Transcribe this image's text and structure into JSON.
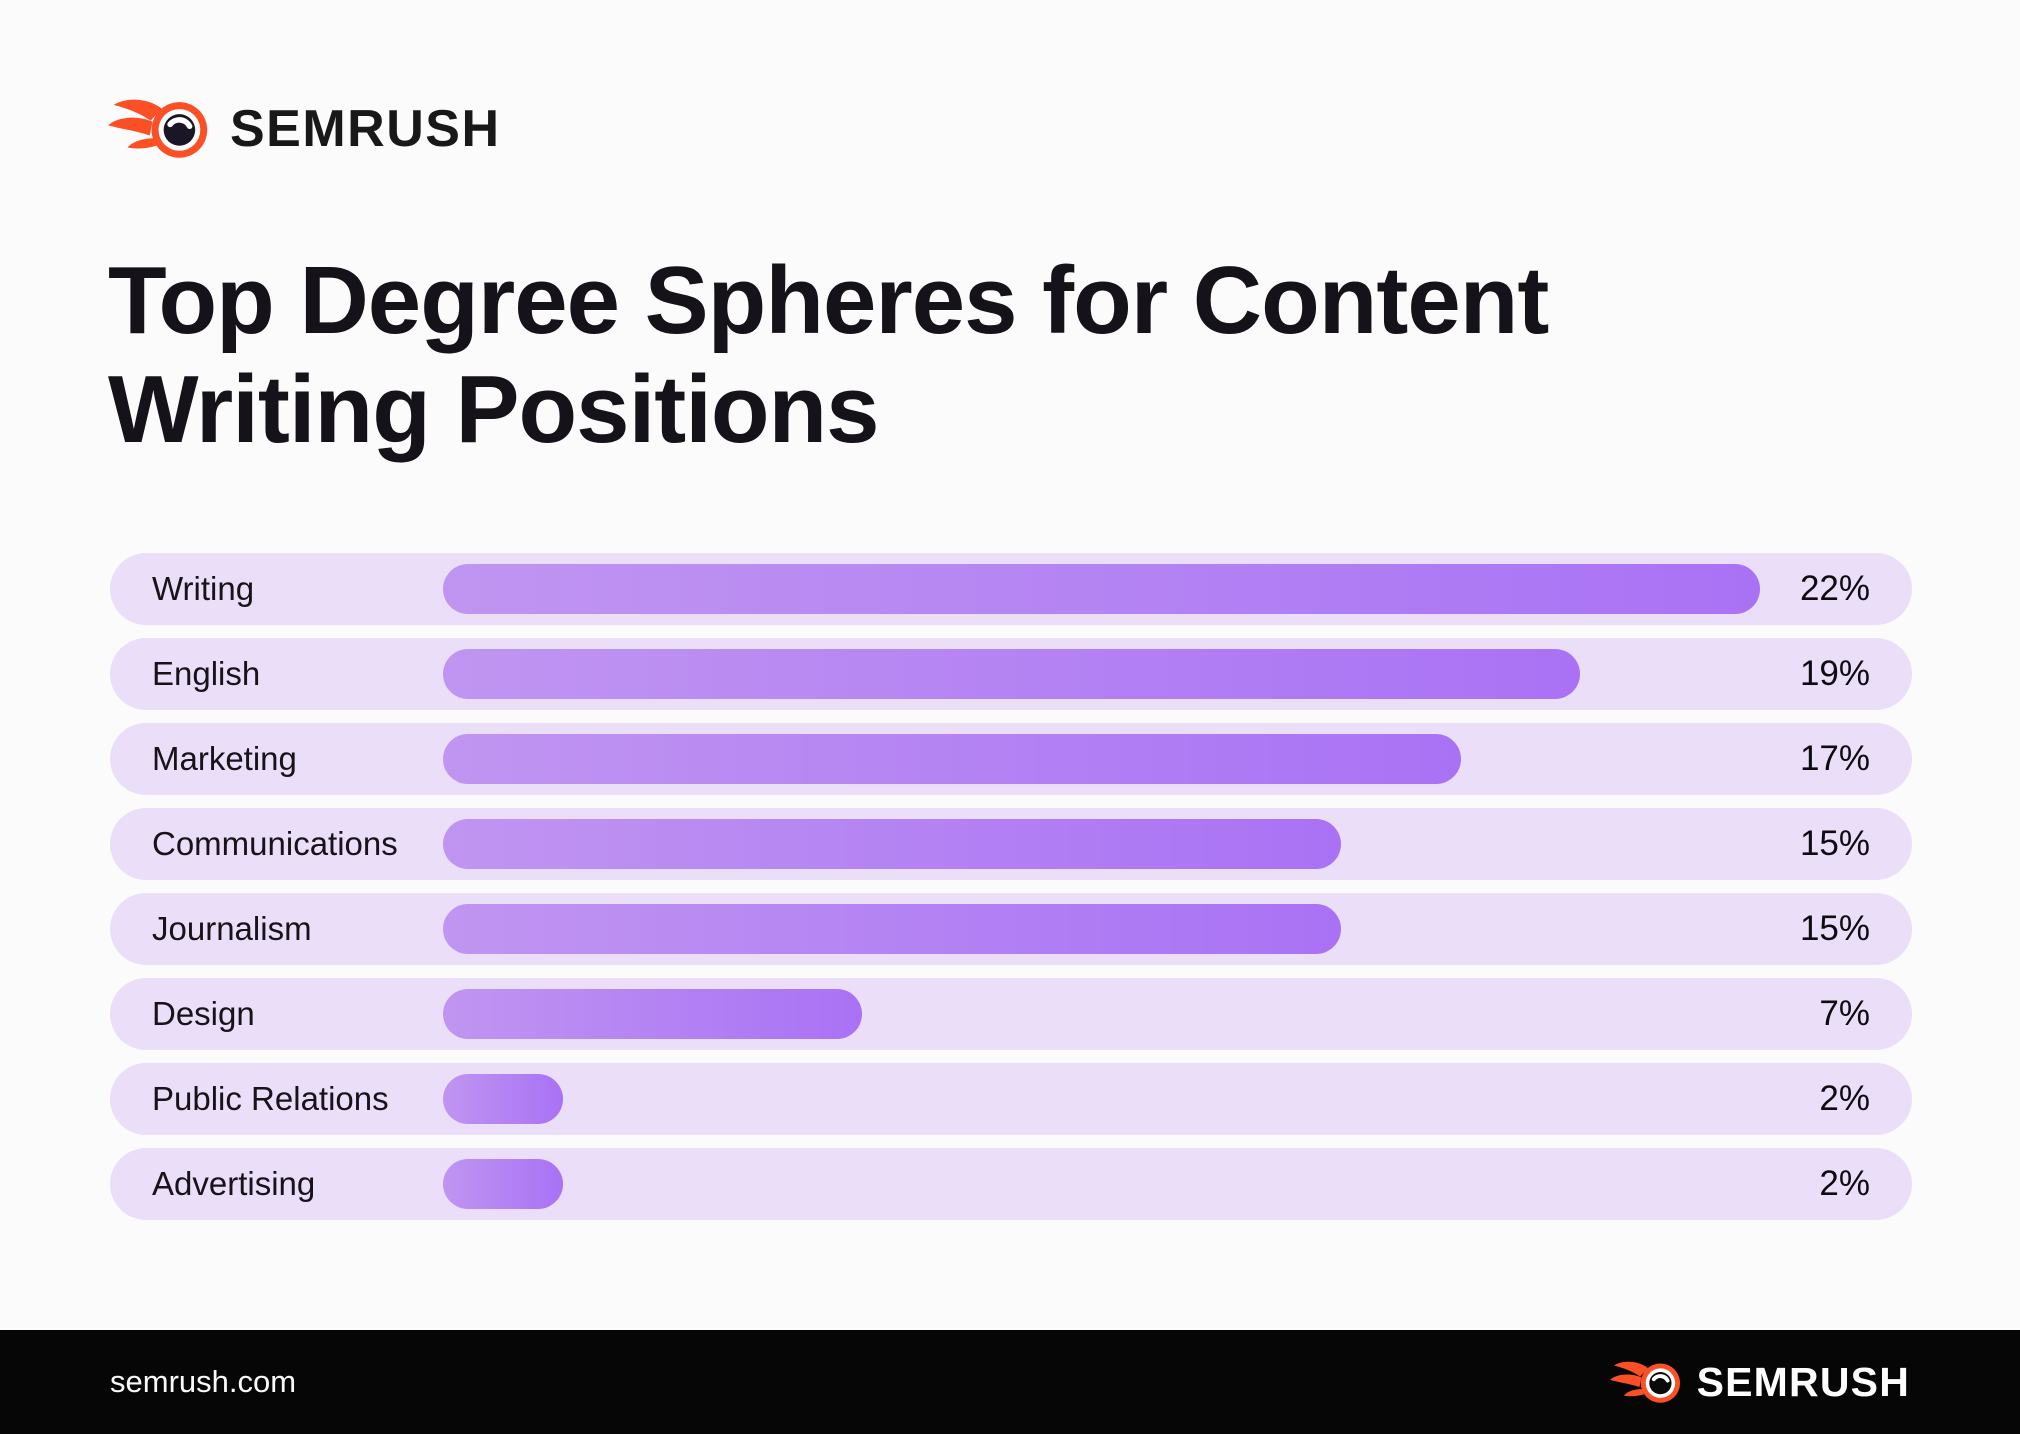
{
  "header": {
    "brand": "SEMRUSH"
  },
  "title": {
    "line1": "Top Degree Spheres for Content",
    "line2": "Writing Positions"
  },
  "chart_data": {
    "type": "bar",
    "orientation": "horizontal",
    "title": "Top Degree Spheres for Content Writing Positions",
    "categories": [
      "Writing",
      "English",
      "Marketing",
      "Communications",
      "Journalism",
      "Design",
      "Public Relations",
      "Advertising"
    ],
    "values": [
      22,
      19,
      17,
      15,
      15,
      7,
      2,
      2
    ],
    "unit": "%",
    "xlim": [
      0,
      24
    ],
    "grid": false,
    "value_labels_position": "right-end-of-track",
    "colors": {
      "track": "#EADEF9",
      "bar_gradient_start": "#C095F1",
      "bar_gradient_end": "#A972F5"
    }
  },
  "footer": {
    "url": "semrush.com",
    "brand": "SEMRUSH"
  },
  "brand_colors": {
    "orange": "#FB5025",
    "ink": "#1B1626"
  }
}
